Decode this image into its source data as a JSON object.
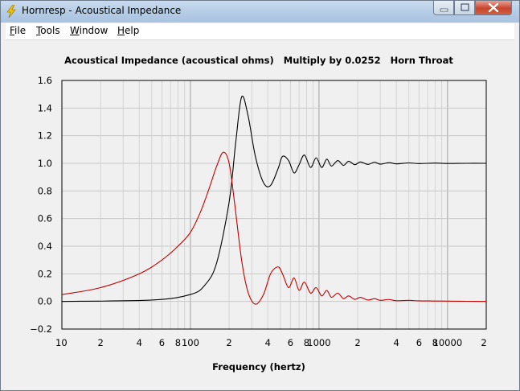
{
  "window": {
    "title": "Hornresp - Acoustical Impedance"
  },
  "menu": [
    {
      "label": "File",
      "accel": "F",
      "rest": "ile"
    },
    {
      "label": "Tools",
      "accel": "T",
      "rest": "ools"
    },
    {
      "label": "Window",
      "accel": "W",
      "rest": "indow"
    },
    {
      "label": "Help",
      "accel": "H",
      "rest": "elp"
    }
  ],
  "chart_data": {
    "type": "line",
    "title": "Acoustical Impedance (acoustical ohms)   Multiply by 0.0252   Horn Throat",
    "xlabel": "Frequency (hertz)",
    "ylabel": "",
    "x_scale": "log",
    "xlim": [
      10,
      20000
    ],
    "ylim": [
      -0.2,
      1.6
    ],
    "grid": true,
    "x_tick_labels": [
      "10",
      "2",
      "4",
      "6",
      "8",
      "100",
      "2",
      "4",
      "6",
      "8",
      "1000",
      "2",
      "4",
      "6",
      "8",
      "10000",
      "2"
    ],
    "y_tick_labels": [
      "1.6",
      "1.4",
      "1.2",
      "1.0",
      "0.8",
      "0.6",
      "0.4",
      "0.2",
      "0.0",
      "−0.2"
    ],
    "series": [
      {
        "color": "#000000",
        "x": [
          10,
          50,
          100,
          130,
          160,
          200,
          225,
          250,
          280,
          320,
          370,
          420,
          480,
          520,
          580,
          640,
          700,
          770,
          860,
          950,
          1050,
          1150,
          1250,
          1400,
          1550,
          1700,
          1900,
          2100,
          2400,
          2700,
          3000,
          3500,
          4000,
          5000,
          6000,
          8000,
          10000,
          14000,
          20000
        ],
        "y": [
          0.0,
          0.01,
          0.05,
          0.12,
          0.28,
          0.72,
          1.15,
          1.48,
          1.35,
          1.05,
          0.86,
          0.84,
          0.96,
          1.05,
          1.02,
          0.93,
          0.99,
          1.06,
          0.97,
          1.04,
          0.97,
          1.03,
          0.98,
          1.02,
          0.985,
          1.015,
          0.99,
          1.01,
          0.992,
          1.008,
          0.994,
          1.005,
          0.996,
          1.003,
          0.998,
          1.002,
          0.999,
          1.0,
          1.0
        ]
      },
      {
        "color": "#c00000",
        "x": [
          10,
          20,
          40,
          60,
          80,
          100,
          120,
          140,
          160,
          180,
          200,
          220,
          250,
          280,
          320,
          370,
          420,
          480,
          520,
          580,
          640,
          700,
          770,
          860,
          950,
          1050,
          1150,
          1250,
          1400,
          1550,
          1700,
          1900,
          2100,
          2400,
          2700,
          3000,
          3500,
          4000,
          5000,
          6000,
          8000,
          10000,
          14000,
          20000
        ],
        "y": [
          0.05,
          0.1,
          0.2,
          0.3,
          0.4,
          0.5,
          0.65,
          0.82,
          0.98,
          1.08,
          1.0,
          0.72,
          0.3,
          0.07,
          -0.02,
          0.05,
          0.2,
          0.25,
          0.2,
          0.1,
          0.17,
          0.08,
          0.14,
          0.06,
          0.1,
          0.04,
          0.08,
          0.03,
          0.06,
          0.02,
          0.04,
          0.015,
          0.03,
          0.01,
          0.02,
          0.008,
          0.014,
          0.005,
          0.008,
          0.004,
          0.003,
          0.002,
          0.001,
          0.0
        ]
      }
    ]
  }
}
